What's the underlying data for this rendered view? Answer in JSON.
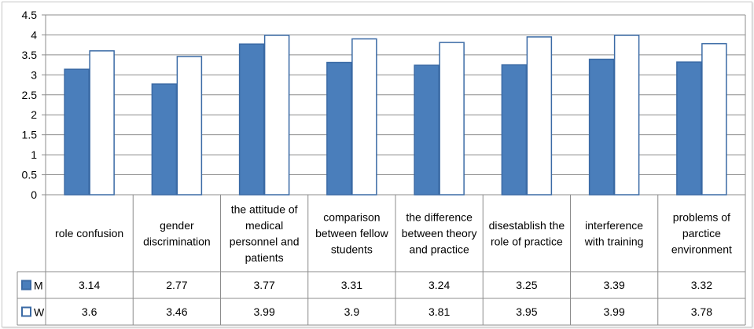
{
  "chart_data": {
    "type": "bar",
    "categories": [
      "role confusion",
      "gender discrimination",
      "the attitude  of medical personnel and patients",
      "comparison between fellow students",
      "the difference between theory and practice",
      "disestablish the role of practice",
      "interference with training",
      "problems of parctice environment"
    ],
    "category_lines": [
      [
        "role confusion"
      ],
      [
        "gender",
        "discrimination"
      ],
      [
        "the attitude  of",
        "medical",
        "personnel and",
        "patients"
      ],
      [
        "comparison",
        "between fellow",
        "students"
      ],
      [
        "the difference",
        "between theory",
        "and practice"
      ],
      [
        "disestablish the",
        "role of practice"
      ],
      [
        "interference",
        "with training"
      ],
      [
        "problems of",
        "parctice",
        "environment"
      ]
    ],
    "series": [
      {
        "name": "M",
        "values": [
          3.14,
          2.77,
          3.77,
          3.31,
          3.24,
          3.25,
          3.39,
          3.32
        ],
        "labels": [
          "3.14",
          "2.77",
          "3.77",
          "3.31",
          "3.24",
          "3.25",
          "3.39",
          "3.32"
        ],
        "color": "#4a7ebb",
        "border": "#3a6aa5"
      },
      {
        "name": "W",
        "values": [
          3.6,
          3.46,
          3.99,
          3.9,
          3.81,
          3.95,
          3.99,
          3.78
        ],
        "labels": [
          "3.6",
          "3.46",
          "3.99",
          "3.9",
          "3.81",
          "3.95",
          "3.99",
          "3.78"
        ],
        "color": "#ffffff",
        "border": "#3a6aa5"
      }
    ],
    "yticks": [
      "0",
      "0.5",
      "1",
      "1.5",
      "2",
      "2.5",
      "3",
      "3.5",
      "4",
      "4.5"
    ],
    "ylim": [
      0,
      4.5
    ],
    "grid": true,
    "legend": "data-table"
  }
}
